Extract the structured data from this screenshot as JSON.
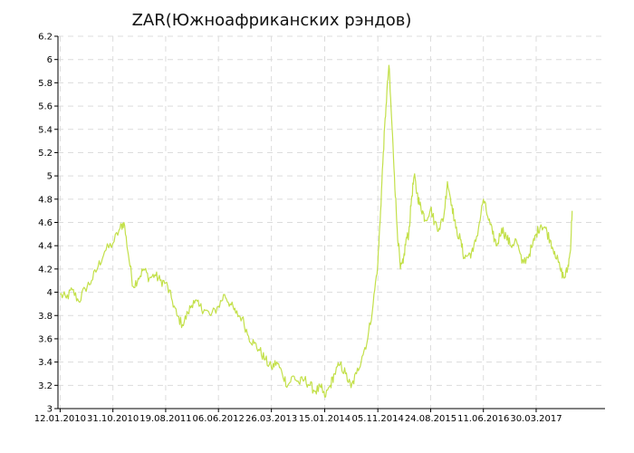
{
  "chart_data": {
    "type": "line",
    "title": "ZAR(Южноафриканских рэндов)",
    "xlabel": "",
    "ylabel": "",
    "ylim": [
      3,
      6.2
    ],
    "y_ticks": [
      3,
      3.2,
      3.4,
      3.6,
      3.8,
      4,
      4.2,
      4.4,
      4.6,
      4.8,
      5,
      5.2,
      5.4,
      5.6,
      5.8,
      6,
      6.2
    ],
    "y_tick_labels": [
      "3",
      "3.2",
      "3.4",
      "3.6",
      "3.8",
      "4",
      "4.2",
      "4.4",
      "4.6",
      "4.8",
      "5",
      "5.2",
      "5.4",
      "5.6",
      "5.8",
      "6",
      "6.2"
    ],
    "x_tick_labels": [
      "12.01.2010",
      "31.10.2010",
      "19.08.2011",
      "06.06.2012",
      "26.03.2013",
      "15.01.2014",
      "05.11.2014",
      "24.08.2015",
      "11.06.2016",
      "30.03.2017"
    ],
    "x_range": [
      "2009-12-31",
      "2018-04-15"
    ],
    "grid": true,
    "color": "#c3e04a",
    "series": [
      {
        "points": [
          [
            "2010-01-12",
            3.98
          ],
          [
            "2010-02-15",
            3.95
          ],
          [
            "2010-03-20",
            4.02
          ],
          [
            "2010-04-25",
            3.92
          ],
          [
            "2010-05-30",
            4.03
          ],
          [
            "2010-07-05",
            4.1
          ],
          [
            "2010-08-10",
            4.22
          ],
          [
            "2010-09-15",
            4.35
          ],
          [
            "2010-10-31",
            4.42
          ],
          [
            "2010-12-10",
            4.55
          ],
          [
            "2010-12-31",
            4.6
          ],
          [
            "2011-01-25",
            4.32
          ],
          [
            "2011-02-20",
            4.05
          ],
          [
            "2011-03-20",
            4.12
          ],
          [
            "2011-04-20",
            4.2
          ],
          [
            "2011-05-20",
            4.12
          ],
          [
            "2011-06-20",
            4.15
          ],
          [
            "2011-07-20",
            4.1
          ],
          [
            "2011-08-19",
            4.08
          ],
          [
            "2011-09-20",
            3.95
          ],
          [
            "2011-10-20",
            3.8
          ],
          [
            "2011-11-20",
            3.72
          ],
          [
            "2011-12-20",
            3.82
          ],
          [
            "2012-01-20",
            3.93
          ],
          [
            "2012-02-20",
            3.88
          ],
          [
            "2012-03-20",
            3.85
          ],
          [
            "2012-04-25",
            3.8
          ],
          [
            "2012-06-06",
            3.88
          ],
          [
            "2012-07-10",
            3.98
          ],
          [
            "2012-08-10",
            3.9
          ],
          [
            "2012-09-10",
            3.82
          ],
          [
            "2012-10-15",
            3.78
          ],
          [
            "2012-11-20",
            3.62
          ],
          [
            "2012-12-20",
            3.56
          ],
          [
            "2013-01-20",
            3.5
          ],
          [
            "2013-02-20",
            3.42
          ],
          [
            "2013-03-26",
            3.35
          ],
          [
            "2013-04-25",
            3.4
          ],
          [
            "2013-05-25",
            3.3
          ],
          [
            "2013-06-25",
            3.2
          ],
          [
            "2013-07-25",
            3.28
          ],
          [
            "2013-08-25",
            3.22
          ],
          [
            "2013-09-25",
            3.25
          ],
          [
            "2013-10-25",
            3.2
          ],
          [
            "2013-11-25",
            3.15
          ],
          [
            "2013-12-25",
            3.18
          ],
          [
            "2014-01-15",
            3.1
          ],
          [
            "2014-02-15",
            3.2
          ],
          [
            "2014-03-10",
            3.3
          ],
          [
            "2014-04-10",
            3.38
          ],
          [
            "2014-05-10",
            3.3
          ],
          [
            "2014-06-10",
            3.18
          ],
          [
            "2014-07-10",
            3.3
          ],
          [
            "2014-08-10",
            3.45
          ],
          [
            "2014-09-10",
            3.6
          ],
          [
            "2014-10-10",
            3.9
          ],
          [
            "2014-11-05",
            4.25
          ],
          [
            "2014-11-20",
            4.7
          ],
          [
            "2014-12-05",
            5.2
          ],
          [
            "2014-12-20",
            5.6
          ],
          [
            "2015-01-05",
            5.95
          ],
          [
            "2015-01-20",
            5.5
          ],
          [
            "2015-02-05",
            5.0
          ],
          [
            "2015-02-20",
            4.55
          ],
          [
            "2015-03-10",
            4.2
          ],
          [
            "2015-03-25",
            4.25
          ],
          [
            "2015-04-10",
            4.45
          ],
          [
            "2015-04-25",
            4.5
          ],
          [
            "2015-05-10",
            4.8
          ],
          [
            "2015-05-25",
            5.0
          ],
          [
            "2015-06-10",
            4.85
          ],
          [
            "2015-06-25",
            4.75
          ],
          [
            "2015-07-10",
            4.7
          ],
          [
            "2015-07-25",
            4.62
          ],
          [
            "2015-08-24",
            4.72
          ],
          [
            "2015-09-15",
            4.6
          ],
          [
            "2015-10-10",
            4.55
          ],
          [
            "2015-11-05",
            4.65
          ],
          [
            "2015-11-25",
            4.95
          ],
          [
            "2015-12-20",
            4.75
          ],
          [
            "2016-01-10",
            4.55
          ],
          [
            "2016-02-05",
            4.45
          ],
          [
            "2016-02-25",
            4.3
          ],
          [
            "2016-03-20",
            4.32
          ],
          [
            "2016-04-15",
            4.35
          ],
          [
            "2016-05-15",
            4.55
          ],
          [
            "2016-06-11",
            4.8
          ],
          [
            "2016-07-05",
            4.65
          ],
          [
            "2016-08-01",
            4.5
          ],
          [
            "2016-08-25",
            4.4
          ],
          [
            "2016-09-20",
            4.55
          ],
          [
            "2016-10-15",
            4.48
          ],
          [
            "2016-11-10",
            4.4
          ],
          [
            "2016-12-10",
            4.45
          ],
          [
            "2017-01-10",
            4.25
          ],
          [
            "2017-02-10",
            4.3
          ],
          [
            "2017-03-10",
            4.4
          ],
          [
            "2017-03-30",
            4.5
          ],
          [
            "2017-04-25",
            4.58
          ],
          [
            "2017-05-20",
            4.55
          ],
          [
            "2017-06-15",
            4.45
          ],
          [
            "2017-07-10",
            4.35
          ],
          [
            "2017-08-10",
            4.2
          ],
          [
            "2017-09-01",
            4.12
          ],
          [
            "2017-09-20",
            4.2
          ],
          [
            "2017-10-05",
            4.35
          ],
          [
            "2017-10-15",
            4.7
          ]
        ]
      }
    ]
  }
}
